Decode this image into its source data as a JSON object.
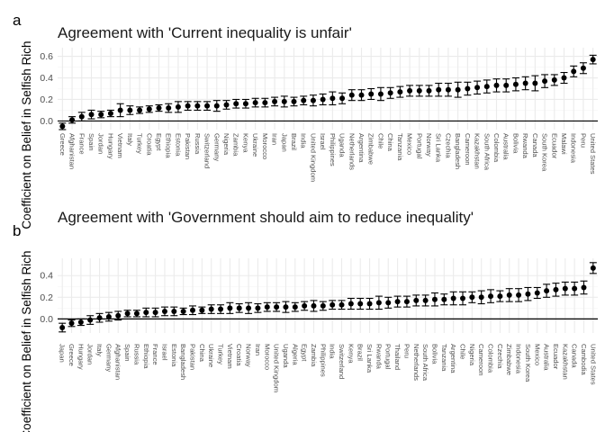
{
  "chart_data": [
    {
      "type": "scatter",
      "panel_label": "a",
      "title": "Agreement with 'Current inequality is unfair'",
      "ylabel": "Coefficient on Belief in Selfish Rich",
      "ylim": [
        -0.08,
        0.68
      ],
      "yticks": [
        0.0,
        0.2,
        0.4,
        0.6
      ],
      "grid": true,
      "reference_line": 0,
      "categories": [
        "Greece",
        "Afghanistan",
        "France",
        "Spain",
        "Jordan",
        "Hungary",
        "Vietnam",
        "Italy",
        "Turkey",
        "Croatia",
        "Egypt",
        "Ethiopia",
        "Estonia",
        "Pakistan",
        "Russia",
        "Switzerland",
        "Germany",
        "Nigeria",
        "Zambia",
        "Kenya",
        "Ukraine",
        "Morocco",
        "Iran",
        "Japan",
        "Brazil",
        "India",
        "United Kingdom",
        "Israel",
        "Philippines",
        "Uganda",
        "Netherlands",
        "Argentina",
        "Zimbabwe",
        "Chile",
        "China",
        "Tanzania",
        "Mexico",
        "Portugal",
        "Norway",
        "Sri Lanka",
        "Czechia",
        "Bangladesh",
        "Cameroon",
        "Kazakhstan",
        "South Africa",
        "Colombia",
        "Australia",
        "Bolivia",
        "Rwanda",
        "Canada",
        "South Korea",
        "Ecuador",
        "Malawi",
        "Indonesia",
        "Peru",
        "United States"
      ],
      "values": [
        -0.05,
        0.01,
        0.04,
        0.06,
        0.06,
        0.07,
        0.1,
        0.1,
        0.1,
        0.11,
        0.12,
        0.12,
        0.13,
        0.14,
        0.14,
        0.14,
        0.14,
        0.15,
        0.16,
        0.16,
        0.17,
        0.17,
        0.18,
        0.18,
        0.18,
        0.19,
        0.19,
        0.2,
        0.21,
        0.21,
        0.24,
        0.24,
        0.25,
        0.25,
        0.26,
        0.27,
        0.28,
        0.28,
        0.28,
        0.29,
        0.29,
        0.29,
        0.3,
        0.31,
        0.32,
        0.33,
        0.33,
        0.34,
        0.35,
        0.35,
        0.37,
        0.38,
        0.4,
        0.46,
        0.49,
        0.57
      ],
      "ci_low": [
        -0.08,
        -0.02,
        0.0,
        0.02,
        0.03,
        0.04,
        0.04,
        0.06,
        0.07,
        0.08,
        0.09,
        0.08,
        0.08,
        0.1,
        0.1,
        0.1,
        0.09,
        0.11,
        0.12,
        0.12,
        0.13,
        0.13,
        0.14,
        0.13,
        0.14,
        0.15,
        0.14,
        0.15,
        0.15,
        0.16,
        0.19,
        0.19,
        0.2,
        0.19,
        0.21,
        0.22,
        0.23,
        0.23,
        0.23,
        0.23,
        0.23,
        0.22,
        0.24,
        0.25,
        0.26,
        0.27,
        0.27,
        0.28,
        0.29,
        0.28,
        0.31,
        0.33,
        0.35,
        0.41,
        0.44,
        0.53
      ],
      "ci_high": [
        -0.02,
        0.04,
        0.08,
        0.1,
        0.09,
        0.1,
        0.16,
        0.14,
        0.13,
        0.14,
        0.15,
        0.16,
        0.18,
        0.18,
        0.18,
        0.18,
        0.19,
        0.19,
        0.2,
        0.2,
        0.21,
        0.21,
        0.22,
        0.23,
        0.22,
        0.23,
        0.24,
        0.25,
        0.27,
        0.26,
        0.29,
        0.29,
        0.3,
        0.31,
        0.31,
        0.32,
        0.33,
        0.33,
        0.33,
        0.35,
        0.35,
        0.36,
        0.36,
        0.37,
        0.38,
        0.39,
        0.39,
        0.4,
        0.41,
        0.42,
        0.43,
        0.43,
        0.45,
        0.51,
        0.54,
        0.61
      ]
    },
    {
      "type": "scatter",
      "panel_label": "b",
      "title": "Agreement with 'Government should aim to reduce inequality'",
      "ylabel": "Coefficient on Belief in Selfish Rich",
      "ylim": [
        -0.13,
        0.56
      ],
      "yticks": [
        0.0,
        0.2,
        0.4
      ],
      "grid": true,
      "reference_line": 0,
      "categories": [
        "Japan",
        "Greece",
        "Hungary",
        "Jordan",
        "Italy",
        "Germany",
        "Afghanistan",
        "Spain",
        "Russia",
        "Ethiopia",
        "France",
        "Israel",
        "Estonia",
        "Bangladesh",
        "Pakistan",
        "China",
        "Ukraine",
        "Turkey",
        "Vietnam",
        "Croatia",
        "Norway",
        "Iran",
        "Morocco",
        "United Kingdom",
        "Uganda",
        "Algeria",
        "Egypt",
        "Zambia",
        "Philippines",
        "India",
        "Switzerland",
        "Kenya",
        "Brazil",
        "Sri Lanka",
        "Rwanda",
        "Portugal",
        "Thailand",
        "Peru",
        "Netherlands",
        "South Africa",
        "Bolivia",
        "Tanzania",
        "Argentina",
        "Chile",
        "Nigeria",
        "Cameroon",
        "Colombia",
        "Czechia",
        "Zimbabwe",
        "Indonesia",
        "South Korea",
        "Mexico",
        "Australia",
        "Ecuador",
        "Kazakhstan",
        "Canada",
        "Cambodia",
        "United States"
      ],
      "values": [
        -0.08,
        -0.04,
        -0.03,
        -0.01,
        0.01,
        0.02,
        0.03,
        0.05,
        0.05,
        0.06,
        0.06,
        0.07,
        0.07,
        0.07,
        0.08,
        0.08,
        0.09,
        0.09,
        0.1,
        0.1,
        0.1,
        0.1,
        0.11,
        0.11,
        0.11,
        0.11,
        0.12,
        0.12,
        0.12,
        0.13,
        0.13,
        0.14,
        0.14,
        0.14,
        0.15,
        0.15,
        0.16,
        0.16,
        0.17,
        0.17,
        0.18,
        0.18,
        0.19,
        0.19,
        0.2,
        0.2,
        0.21,
        0.21,
        0.22,
        0.22,
        0.23,
        0.24,
        0.26,
        0.27,
        0.28,
        0.28,
        0.29,
        0.47
      ],
      "ci_low": [
        -0.12,
        -0.07,
        -0.06,
        -0.05,
        -0.03,
        -0.02,
        -0.01,
        0.02,
        0.02,
        0.02,
        0.02,
        0.03,
        0.03,
        0.04,
        0.04,
        0.05,
        0.05,
        0.05,
        0.05,
        0.06,
        0.05,
        0.06,
        0.07,
        0.07,
        0.06,
        0.07,
        0.08,
        0.07,
        0.08,
        0.09,
        0.09,
        0.09,
        0.09,
        0.09,
        0.09,
        0.1,
        0.11,
        0.11,
        0.12,
        0.12,
        0.12,
        0.13,
        0.13,
        0.13,
        0.15,
        0.14,
        0.15,
        0.16,
        0.16,
        0.16,
        0.17,
        0.19,
        0.2,
        0.21,
        0.22,
        0.22,
        0.23,
        0.42
      ],
      "ci_high": [
        -0.04,
        -0.01,
        0.0,
        0.03,
        0.05,
        0.06,
        0.07,
        0.08,
        0.08,
        0.1,
        0.1,
        0.11,
        0.11,
        0.1,
        0.12,
        0.11,
        0.13,
        0.13,
        0.15,
        0.14,
        0.15,
        0.14,
        0.15,
        0.15,
        0.16,
        0.15,
        0.16,
        0.17,
        0.16,
        0.17,
        0.17,
        0.19,
        0.19,
        0.19,
        0.21,
        0.2,
        0.21,
        0.21,
        0.22,
        0.22,
        0.24,
        0.23,
        0.25,
        0.25,
        0.25,
        0.26,
        0.27,
        0.26,
        0.28,
        0.28,
        0.29,
        0.29,
        0.32,
        0.33,
        0.34,
        0.34,
        0.35,
        0.52
      ]
    }
  ]
}
